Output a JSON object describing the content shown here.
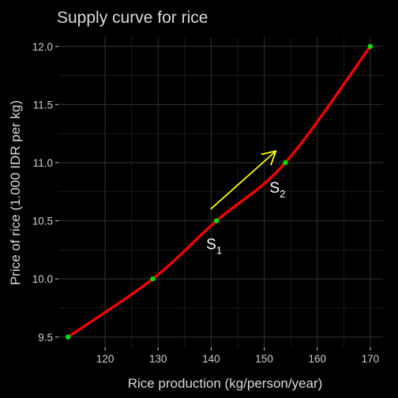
{
  "chart_data": {
    "type": "line",
    "title": "Supply curve for rice",
    "xlabel": "Rice production (kg/person/year)",
    "ylabel": "Price of rice (1.000 IDR per kg)",
    "xlim": [
      111.2,
      172.4
    ],
    "ylim": [
      9.41,
      12.08
    ],
    "xticks": [
      120,
      130,
      140,
      150,
      160,
      170
    ],
    "yticks": [
      9.5,
      10.0,
      10.5,
      11.0,
      11.5,
      12.0
    ],
    "xtick_labels": [
      "120",
      "130",
      "140",
      "150",
      "160",
      "170"
    ],
    "ytick_labels": [
      "9.5",
      "10.0",
      "10.5",
      "11.0",
      "11.5",
      "12.0"
    ],
    "grid": true,
    "series": [
      {
        "type": "line",
        "color": "#ff0000",
        "x": [
          113,
          129,
          141,
          154,
          170
        ],
        "y": [
          9.5,
          10.0,
          10.5,
          11.0,
          12.0
        ]
      },
      {
        "type": "scatter",
        "color": "#00e000",
        "x": [
          113,
          129,
          141,
          154,
          170
        ],
        "y": [
          9.5,
          10.0,
          10.5,
          11.0,
          12.0
        ]
      }
    ],
    "annotations": [
      {
        "text": "S",
        "subscript": "1",
        "x": 141,
        "y": 10.5
      },
      {
        "text": "S",
        "subscript": "2",
        "x": 154,
        "y": 11.0
      }
    ],
    "arrow": {
      "from": [
        139.9,
        10.6
      ],
      "to": [
        152.2,
        11.1
      ],
      "color": "#ffff00"
    },
    "colors": {
      "background": "#000000",
      "panel": "#000000",
      "grid": "#2b2b2b",
      "text": "#d9d9d9"
    }
  }
}
